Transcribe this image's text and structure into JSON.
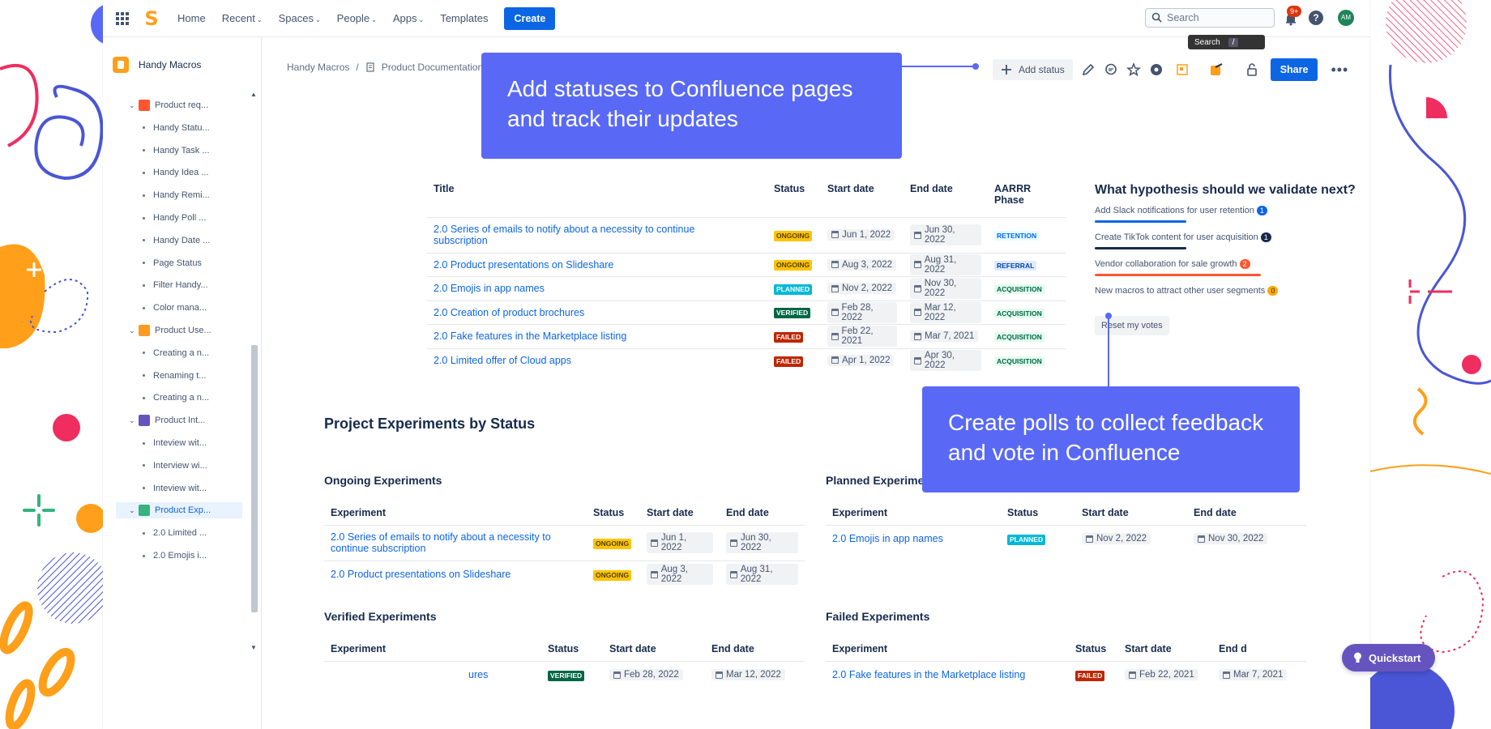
{
  "topbar": {
    "nav": [
      {
        "label": "Home",
        "caret": false
      },
      {
        "label": "Recent",
        "caret": true
      },
      {
        "label": "Spaces",
        "caret": true
      },
      {
        "label": "People",
        "caret": true
      },
      {
        "label": "Apps",
        "caret": true
      },
      {
        "label": "Templates",
        "caret": false
      }
    ],
    "create_label": "Create",
    "search_placeholder": "Search",
    "tooltip_label": "Search",
    "tooltip_key": "/",
    "notification_count": "9+",
    "help_label": "?",
    "avatar_initials": "AM"
  },
  "sidebar": {
    "space_name": "Handy Macros",
    "tree": [
      {
        "label": "Product req...",
        "level": 1,
        "expanded": true,
        "icon": "table-icon",
        "color": "#ff5630"
      },
      {
        "label": "Handy Statu...",
        "level": 2
      },
      {
        "label": "Handy Task ...",
        "level": 2
      },
      {
        "label": "Handy Idea ...",
        "level": 2
      },
      {
        "label": "Handy Remi...",
        "level": 2
      },
      {
        "label": "Handy Poll ...",
        "level": 2
      },
      {
        "label": "Handy Date ...",
        "level": 2
      },
      {
        "label": "Page Status",
        "level": 2
      },
      {
        "label": "Filter Handy...",
        "level": 2
      },
      {
        "label": "Color mana...",
        "level": 2
      },
      {
        "label": "Product Use...",
        "level": 1,
        "expanded": true,
        "icon": "user-icon",
        "color": "#ff991f"
      },
      {
        "label": "Creating a n...",
        "level": 2
      },
      {
        "label": "Renaming t...",
        "level": 2
      },
      {
        "label": "Creating a n...",
        "level": 2
      },
      {
        "label": "Product Int...",
        "level": 1,
        "expanded": true,
        "icon": "microphone-icon",
        "color": "#6554c0"
      },
      {
        "label": "Inteview wit...",
        "level": 2
      },
      {
        "label": "Interview wi...",
        "level": 2
      },
      {
        "label": "Inteview wit...",
        "level": 2
      },
      {
        "label": "Product Exp...",
        "level": 1,
        "expanded": true,
        "icon": "pencil-icon",
        "color": "#36b37e",
        "selected": true
      },
      {
        "label": "2.0 Limited ...",
        "level": 2
      },
      {
        "label": "2.0 Emojis i...",
        "level": 2
      }
    ]
  },
  "breadcrumb": {
    "space": "Handy Macros",
    "separator": "/",
    "page": "Product Documentation"
  },
  "page_actions": {
    "add_status_label": "Add status",
    "share_label": "Share",
    "more_label": "•••"
  },
  "callouts": {
    "status": [
      "Add statuses to Confluence pages",
      "and track their updates"
    ],
    "polls": [
      "Create polls to collect feedback",
      "and vote in Confluence"
    ]
  },
  "main_table": {
    "headers": [
      "Title",
      "Status",
      "Start date",
      "End date",
      "AARRR",
      "Phase"
    ],
    "rows": [
      {
        "title": [
          "2.0 Series of emails to notify about a necessity to continue",
          "subscription"
        ],
        "status": "ONGOING",
        "status_class": "ongoing",
        "start": "Jun 1, 2022",
        "end": "Jun 30, 2022",
        "phase": "RETENTION",
        "phase_class": "retention"
      },
      {
        "title": [
          "2.0 Product presentations on Slideshare"
        ],
        "status": "ONGOING",
        "status_class": "ongoing",
        "start": "Aug 3, 2022",
        "end": "Aug 31, 2022",
        "phase": "REFERRAL",
        "phase_class": "referral"
      },
      {
        "title": [
          "2.0 Emojis in app names"
        ],
        "status": "PLANNED",
        "status_class": "planned",
        "start": "Nov 2, 2022",
        "end": "Nov 30, 2022",
        "phase": "ACQUISITION",
        "phase_class": "acquisition"
      },
      {
        "title": [
          "2.0 Creation of product brochures"
        ],
        "status": "VERIFIED",
        "status_class": "verified",
        "start": "Feb 28, 2022",
        "end": "Mar 12, 2022",
        "phase": "ACQUISITION",
        "phase_class": "acquisition"
      },
      {
        "title": [
          "2.0 Fake features in the Marketplace listing"
        ],
        "status": "FAILED",
        "status_class": "failed",
        "start": "Feb 22, 2021",
        "end": "Mar 7, 2021",
        "phase": "ACQUISITION",
        "phase_class": "acquisition"
      },
      {
        "title": [
          "2.0 Limited offer of Cloud apps"
        ],
        "status": "FAILED",
        "status_class": "failed",
        "start": "Apr 1, 2022",
        "end": "Apr 30, 2022",
        "phase": "ACQUISITION",
        "phase_class": "acquisition"
      }
    ]
  },
  "poll": {
    "question": "What hypothesis should we validate next?",
    "options": [
      {
        "label": "Add Slack notifications for user retention",
        "count": "1",
        "count_color": "#0c66e4",
        "bar_color": "#0c66e4",
        "share": 0.55
      },
      {
        "label": "Create TikTok content for user acquisition",
        "count": "1",
        "count_color": "#172b4d",
        "bar_color": "#172b4d",
        "share": 0.55
      },
      {
        "label": "Vendor collaboration for sale growth",
        "count": "2",
        "count_color": "#ff5630",
        "bar_color": "#ff5630",
        "share": 1.0
      },
      {
        "label": "New macros to attract other user segments",
        "count": "0",
        "count_color": "#ffab00",
        "bar_color": "#ffab00",
        "share": 0
      }
    ],
    "reset_label": "Reset my votes"
  },
  "experiments_heading": "Project Experiments by Status",
  "ongoing": {
    "title": "Ongoing Experiments",
    "headers": [
      "Experiment",
      "Status",
      "Start date",
      "End date"
    ],
    "rows": [
      {
        "title": [
          "2.0 Series of emails to notify about a necessity to",
          "continue subscription"
        ],
        "status": "ONGOING",
        "status_class": "ongoing",
        "start": "Jun 1, 2022",
        "end": "Jun 30, 2022"
      },
      {
        "title": [
          "2.0 Product presentations on Slideshare"
        ],
        "status": "ONGOING",
        "status_class": "ongoing",
        "start": "Aug 3, 2022",
        "end": "Aug 31, 2022"
      }
    ]
  },
  "planned": {
    "title": "Planned Experime",
    "headers": [
      "Experiment",
      "Status",
      "Start date",
      "End date"
    ],
    "rows": [
      {
        "title": [
          "2.0 Emojis in app names"
        ],
        "status": "PLANNED",
        "status_class": "planned",
        "start": "Nov 2, 2022",
        "end": "Nov 30, 2022"
      }
    ]
  },
  "verified": {
    "title": "Verified Experiments",
    "headers": [
      "Experiment",
      "Status",
      "Start date",
      "End date"
    ],
    "rows": [
      {
        "title": [
          "ures"
        ],
        "status": "VERIFIED",
        "status_class": "verified",
        "start": "Feb 28, 2022",
        "end": "Mar 12, 2022"
      }
    ]
  },
  "failed": {
    "title": "Failed Experiments",
    "headers": [
      "Experiment",
      "Status",
      "Start date",
      "End d"
    ],
    "rows": [
      {
        "title": [
          "2.0 Fake features in the Marketplace listing"
        ],
        "status": "FAILED",
        "status_class": "failed",
        "start": "Feb 22, 2021",
        "end": "Mar 7, 2021"
      }
    ]
  },
  "quickstart_label": "Quickstart",
  "colors": {
    "accent": "#0c66e4",
    "callout": "#5969f6",
    "quickstart": "#6554c0"
  }
}
